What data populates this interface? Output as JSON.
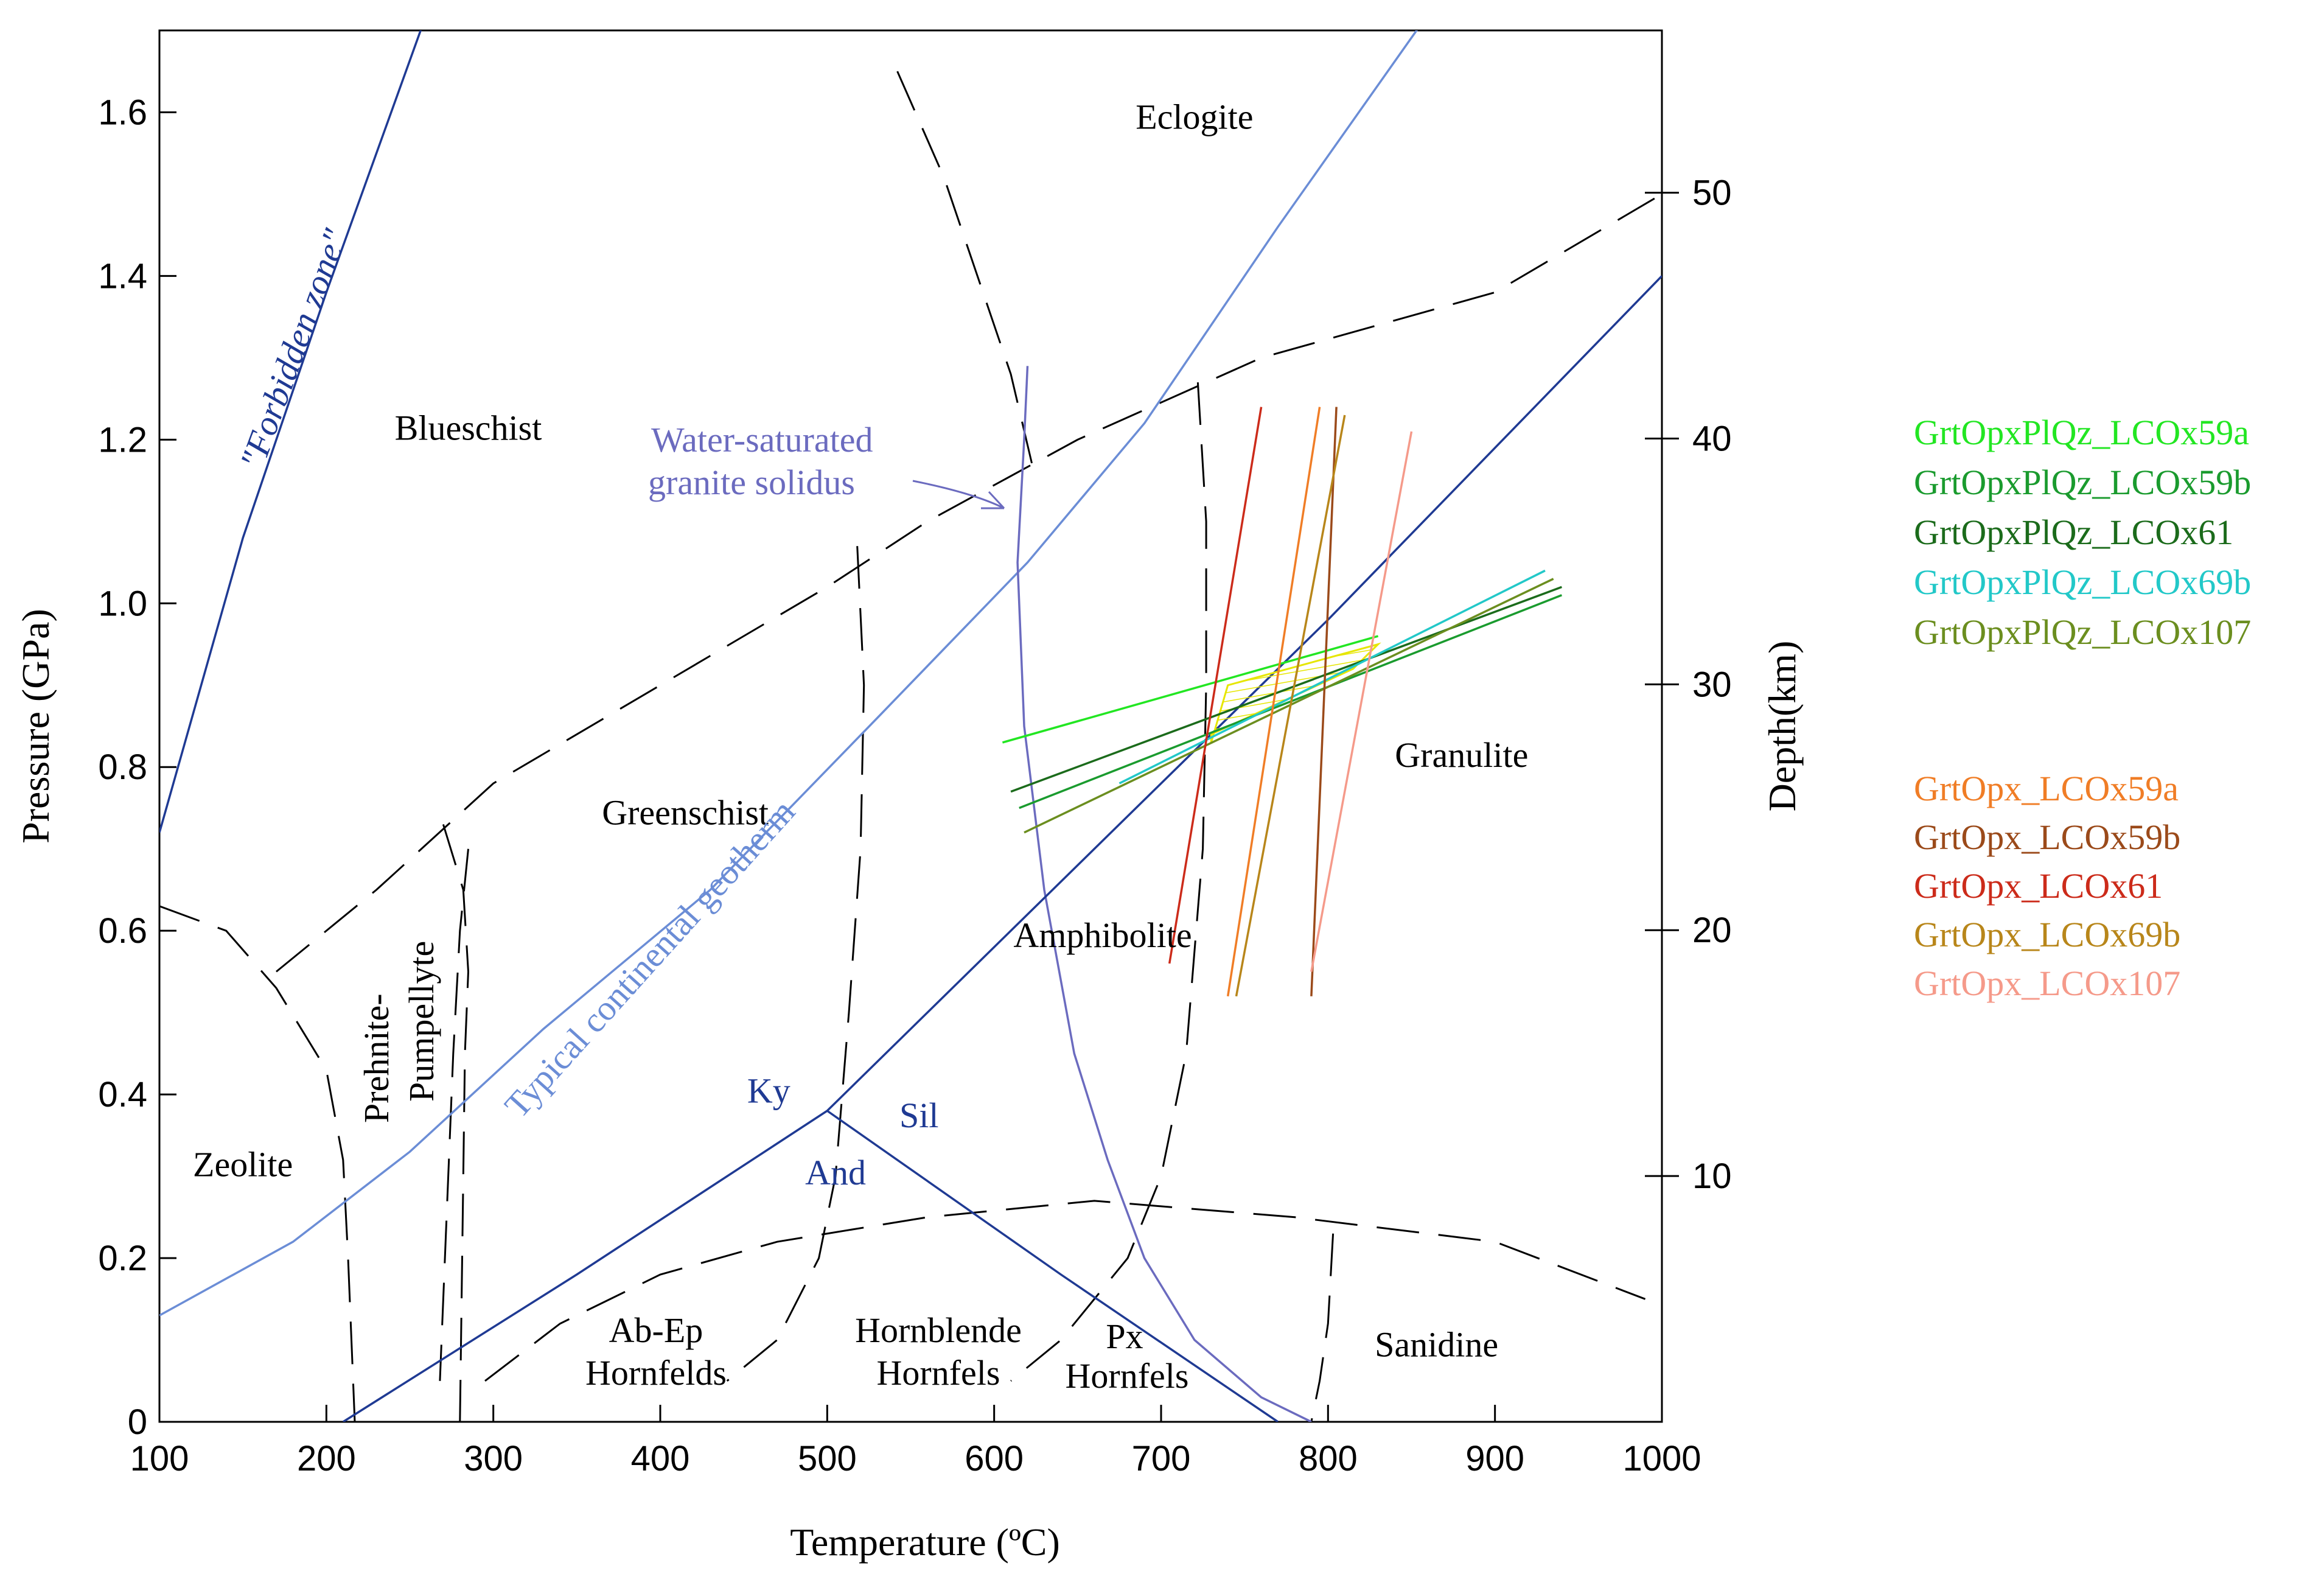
{
  "chart_data": {
    "type": "line",
    "title": "",
    "xlabel": "Temperature (ºC)",
    "ylabel": "Pressure (GPa)",
    "y2label": "Depth(km)",
    "xlim": [
      100,
      1000
    ],
    "ylim": [
      0,
      1.7
    ],
    "y2lim": [
      0,
      56.6
    ],
    "xticks": [
      100,
      200,
      300,
      400,
      500,
      600,
      700,
      800,
      900,
      1000
    ],
    "xtick_labels": [
      "100",
      "200",
      "300",
      "400",
      "500",
      "600",
      "700",
      "800",
      "900",
      "1000"
    ],
    "yticks": [
      0,
      0.2,
      0.4,
      0.6,
      0.8,
      1.0,
      1.2,
      1.4,
      1.6
    ],
    "ytick_labels": [
      "0",
      "0.2",
      "0.4",
      "0.6",
      "0.8",
      "1.0",
      "1.2",
      "1.4",
      "1.6"
    ],
    "y2ticks": [
      10,
      20,
      30,
      40,
      50
    ],
    "y2tick_labels": [
      "10",
      "20",
      "30",
      "40",
      "50"
    ],
    "facies_boundaries": [
      {
        "name": "zeolite-blueschist",
        "points": [
          [
            100,
            0.63
          ],
          [
            140,
            0.6
          ],
          [
            170,
            0.53
          ],
          [
            200,
            0.43
          ],
          [
            210,
            0.32
          ],
          [
            213,
            0.2
          ],
          [
            215,
            0.1
          ],
          [
            217,
            0
          ]
        ]
      },
      {
        "name": "blueschist-greenschist",
        "points": [
          [
            170,
            0.55
          ],
          [
            230,
            0.65
          ],
          [
            300,
            0.78
          ],
          [
            400,
            0.9
          ],
          [
            500,
            1.02
          ],
          [
            560,
            1.1
          ],
          [
            650,
            1.2
          ],
          [
            760,
            1.3
          ],
          [
            900,
            1.38
          ],
          [
            1000,
            1.5
          ]
        ]
      },
      {
        "name": "prehnite-pumpellyte-left",
        "points": [
          [
            285,
            0.7
          ],
          [
            280,
            0.6
          ],
          [
            276,
            0.45
          ],
          [
            273,
            0.3
          ],
          [
            270,
            0.15
          ],
          [
            268,
            0.05
          ]
        ]
      },
      {
        "name": "prehnite-pumpellyte-right",
        "points": [
          [
            270,
            0.73
          ],
          [
            282,
            0.65
          ],
          [
            285,
            0.55
          ],
          [
            283,
            0.45
          ],
          [
            282,
            0.3
          ],
          [
            280,
            0
          ]
        ]
      },
      {
        "name": "greenschist-amphibolite",
        "points": [
          [
            518,
            1.07
          ],
          [
            522,
            0.9
          ],
          [
            520,
            0.7
          ],
          [
            513,
            0.5
          ],
          [
            505,
            0.3
          ],
          [
            495,
            0.2
          ],
          [
            470,
            0.1
          ],
          [
            440,
            0.05
          ]
        ]
      },
      {
        "name": "eclogite",
        "points": [
          [
            542,
            1.65
          ],
          [
            570,
            1.52
          ],
          [
            590,
            1.4
          ],
          [
            610,
            1.28
          ],
          [
            625,
            1.15
          ]
        ]
      },
      {
        "name": "amphibolite-granulite",
        "points": [
          [
            722,
            1.27
          ],
          [
            727,
            1.1
          ],
          [
            727,
            0.9
          ],
          [
            725,
            0.7
          ],
          [
            715,
            0.45
          ],
          [
            700,
            0.3
          ],
          [
            680,
            0.2
          ],
          [
            640,
            0.1
          ],
          [
            610,
            0.05
          ]
        ]
      },
      {
        "name": "hornfels",
        "points": [
          [
            295,
            0.05
          ],
          [
            340,
            0.12
          ],
          [
            400,
            0.18
          ],
          [
            470,
            0.22
          ],
          [
            560,
            0.25
          ],
          [
            660,
            0.27
          ],
          [
            780,
            0.25
          ],
          [
            900,
            0.22
          ],
          [
            990,
            0.15
          ]
        ]
      },
      {
        "name": "sanidine",
        "points": [
          [
            803,
            0.23
          ],
          [
            800,
            0.12
          ],
          [
            795,
            0.05
          ],
          [
            790,
            0
          ]
        ]
      }
    ],
    "curves": [
      {
        "name": "forbidden-zone-line",
        "color": "#1f3a93",
        "points": [
          [
            100,
            0.72
          ],
          [
            150,
            1.08
          ],
          [
            200,
            1.38
          ],
          [
            260,
            1.72
          ]
        ]
      },
      {
        "name": "typical-continental-geotherm",
        "color": "#6b8dd6",
        "points": [
          [
            100,
            0.13
          ],
          [
            180,
            0.22
          ],
          [
            250,
            0.33
          ],
          [
            330,
            0.48
          ],
          [
            430,
            0.65
          ],
          [
            530,
            0.86
          ],
          [
            620,
            1.05
          ],
          [
            690,
            1.22
          ],
          [
            770,
            1.46
          ],
          [
            860,
            1.72
          ]
        ]
      },
      {
        "name": "water-saturated-granite-solidus",
        "color": "#6b6bbf",
        "points": [
          [
            620,
            1.29
          ],
          [
            618,
            1.2
          ],
          [
            614,
            1.05
          ],
          [
            618,
            0.85
          ],
          [
            630,
            0.65
          ],
          [
            648,
            0.45
          ],
          [
            668,
            0.32
          ],
          [
            690,
            0.2
          ],
          [
            720,
            0.1
          ],
          [
            760,
            0.03
          ],
          [
            790,
            0
          ]
        ]
      },
      {
        "name": "ky-sil",
        "color": "#1f3a93",
        "points": [
          [
            500,
            0.38
          ],
          [
            650,
            0.68
          ],
          [
            800,
            0.98
          ],
          [
            1000,
            1.4
          ]
        ]
      },
      {
        "name": "ky-and",
        "color": "#1f3a93",
        "points": [
          [
            210,
            0
          ],
          [
            350,
            0.18
          ],
          [
            500,
            0.38
          ]
        ]
      },
      {
        "name": "and-sil",
        "color": "#1f3a93",
        "points": [
          [
            500,
            0.38
          ],
          [
            640,
            0.18
          ],
          [
            770,
            0
          ]
        ]
      }
    ],
    "series": [
      {
        "name": "GrtOpxPlQz_LCOx59a",
        "color": "#22e622",
        "points": [
          [
            605,
            0.83
          ],
          [
            830,
            0.96
          ]
        ]
      },
      {
        "name": "GrtOpxPlQz_LCOx59b",
        "color": "#1a9b2e",
        "points": [
          [
            615,
            0.75
          ],
          [
            940,
            1.01
          ]
        ]
      },
      {
        "name": "GrtOpxPlQz_LCOx61",
        "color": "#1b6b1b",
        "points": [
          [
            610,
            0.77
          ],
          [
            940,
            1.02
          ]
        ]
      },
      {
        "name": "GrtOpxPlQz_LCOx69b",
        "color": "#22c8c8",
        "points": [
          [
            675,
            0.78
          ],
          [
            930,
            1.04
          ]
        ]
      },
      {
        "name": "GrtOpxPlQz_LCOx107",
        "color": "#6b8e1f",
        "points": [
          [
            618,
            0.72
          ],
          [
            935,
            1.03
          ]
        ]
      },
      {
        "name": "GrtOpx_LCOx59a",
        "color": "#f07d26",
        "points": [
          [
            740,
            0.52
          ],
          [
            795,
            1.24
          ]
        ]
      },
      {
        "name": "GrtOpx_LCOx59b",
        "color": "#9b4a1a",
        "points": [
          [
            790,
            0.52
          ],
          [
            805,
            1.24
          ]
        ]
      },
      {
        "name": "GrtOpx_LCOx61",
        "color": "#cc2b1a",
        "points": [
          [
            705,
            0.56
          ],
          [
            760,
            1.24
          ]
        ]
      },
      {
        "name": "GrtOpx_LCOx69b",
        "color": "#b8861a",
        "points": [
          [
            745,
            0.52
          ],
          [
            810,
            1.23
          ]
        ]
      },
      {
        "name": "GrtOpx_LCOx107",
        "color": "#f59a8a",
        "points": [
          [
            790,
            0.55
          ],
          [
            850,
            1.21
          ]
        ]
      }
    ],
    "intersection_region": {
      "color": "#e6e600",
      "points": [
        [
          730,
          0.83
        ],
        [
          740,
          0.9
        ],
        [
          830,
          0.95
        ],
        [
          815,
          0.92
        ],
        [
          730,
          0.84
        ]
      ]
    },
    "region_labels": [
      {
        "text": "Eclogite",
        "x": 720,
        "y": 1.58
      },
      {
        "text": "Blueschist",
        "x": 285,
        "y": 1.2
      },
      {
        "text": "Greenschist",
        "x": 415,
        "y": 0.73
      },
      {
        "text": "Amphibolite",
        "x": 665,
        "y": 0.58
      },
      {
        "text": "Granulite",
        "x": 880,
        "y": 0.8
      },
      {
        "text": "Zeolite",
        "x": 150,
        "y": 0.3
      },
      {
        "text": "Sanidine",
        "x": 865,
        "y": 0.08
      },
      {
        "text": "Ky",
        "x": 465,
        "y": 0.39
      },
      {
        "text": "Sil",
        "x": 555,
        "y": 0.36
      },
      {
        "text": "And",
        "x": 505,
        "y": 0.29
      }
    ],
    "annotations": {
      "forbidden_zone": "\"Forbidden zone\"",
      "solidus_line1": "Water-saturated",
      "solidus_line2": "granite solidus",
      "geotherm": "Typical continental geotherm",
      "prehnite_line1": "Prehnite-",
      "prehnite_line2": "Pumpellyte",
      "abep_line1": "Ab-Ep",
      "abep_line2": "Hornfelds",
      "hornblende_line1": "Hornblende",
      "hornblende_line2": "Hornfels",
      "px_line1": "Px",
      "px_line2": "Hornfels"
    },
    "legend": {
      "placement": "right",
      "group1": [
        {
          "label": "GrtOpxPlQz_LCOx59a",
          "color": "#22e622"
        },
        {
          "label": "GrtOpxPlQz_LCOx59b",
          "color": "#1a9b2e"
        },
        {
          "label": "GrtOpxPlQz_LCOx61",
          "color": "#1b6b1b"
        },
        {
          "label": "GrtOpxPlQz_LCOx69b",
          "color": "#22c8c8"
        },
        {
          "label": "GrtOpxPlQz_LCOx107",
          "color": "#6b8e1f"
        }
      ],
      "group2": [
        {
          "label": "GrtOpx_LCOx59a",
          "color": "#f07d26"
        },
        {
          "label": "GrtOpx_LCOx59b",
          "color": "#9b4a1a"
        },
        {
          "label": "GrtOpx_LCOx61",
          "color": "#cc2b1a"
        },
        {
          "label": "GrtOpx_LCOx69b",
          "color": "#b8861a"
        },
        {
          "label": "GrtOpx_LCOx107",
          "color": "#f59a8a"
        }
      ]
    }
  }
}
